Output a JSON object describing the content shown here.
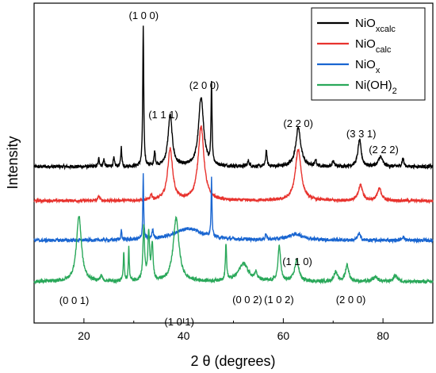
{
  "chart_data": {
    "type": "line",
    "xlabel": "2 θ (degrees)",
    "ylabel": "Intensity",
    "xlim": [
      10,
      90
    ],
    "xticks": [
      "20",
      "40",
      "60",
      "80"
    ],
    "xtick_values": [
      20,
      40,
      60,
      80
    ],
    "yticks": "none",
    "legend_position": "top-right",
    "legend": [
      {
        "base": "NiO",
        "sub": "xcalc",
        "tail": "",
        "color": "#000000"
      },
      {
        "base": "NiO",
        "sub": "calc",
        "tail": "",
        "color": "#e8332e"
      },
      {
        "base": "NiO",
        "sub": "x",
        "tail": "",
        "color": "#1a66d1"
      },
      {
        "base": "Ni(OH)",
        "sub": "2",
        "tail": "",
        "color": "#2aa85a"
      }
    ],
    "annotations": [
      {
        "text": "(1 0 0)",
        "x": 32.0
      },
      {
        "text": "(2 0 0)",
        "x": 43.5
      },
      {
        "text": "(1 1 1)",
        "x": 37.2
      },
      {
        "text": "(2 2 0)",
        "x": 63.0
      },
      {
        "text": "(3 3 1)",
        "x": 75.0
      },
      {
        "text": "(2 2 2)",
        "x": 79.5
      },
      {
        "text": "(1 1 0)",
        "x": 62.8
      },
      {
        "text": "(0 0 1)",
        "x": 19.0
      },
      {
        "text": "(1 0 1)",
        "x": 38.5
      },
      {
        "text": "(0 0 2)",
        "x": 51.5
      },
      {
        "text": "(1 0 2)",
        "x": 58.5
      },
      {
        "text": "(2 0 0)",
        "x": 71.0
      }
    ],
    "series": [
      {
        "name": "NiOxcalc",
        "color": "#000000",
        "baseline": 0.0,
        "noise": 0.012,
        "peaks": [
          [
            23.0,
            0.06,
            0.15
          ],
          [
            24.0,
            0.05,
            0.15
          ],
          [
            26.0,
            0.06,
            0.15
          ],
          [
            27.5,
            0.14,
            0.12
          ],
          [
            31.9,
            1.0,
            0.12
          ],
          [
            34.2,
            0.1,
            0.15
          ],
          [
            37.3,
            0.37,
            0.5
          ],
          [
            43.5,
            0.5,
            0.6
          ],
          [
            45.6,
            0.58,
            0.12
          ],
          [
            53.0,
            0.04,
            0.2
          ],
          [
            56.6,
            0.12,
            0.15
          ],
          [
            63.0,
            0.28,
            0.6
          ],
          [
            66.5,
            0.05,
            0.15
          ],
          [
            70.0,
            0.04,
            0.2
          ],
          [
            75.3,
            0.19,
            0.4
          ],
          [
            79.5,
            0.07,
            0.5
          ],
          [
            84.0,
            0.06,
            0.2
          ]
        ]
      },
      {
        "name": "NiOcalc",
        "color": "#e8332e",
        "baseline": 0.0,
        "noise": 0.012,
        "peaks": [
          [
            23.0,
            0.04,
            0.2
          ],
          [
            33.5,
            0.05,
            0.2
          ],
          [
            37.3,
            0.43,
            0.6
          ],
          [
            43.5,
            0.62,
            0.7
          ],
          [
            63.0,
            0.43,
            0.7
          ],
          [
            75.5,
            0.13,
            0.5
          ],
          [
            79.3,
            0.1,
            0.5
          ]
        ]
      },
      {
        "name": "NiOx",
        "color": "#1a66d1",
        "baseline": 0.0,
        "noise": 0.014,
        "peaks": [
          [
            27.5,
            0.08,
            0.12
          ],
          [
            31.9,
            0.55,
            0.1
          ],
          [
            33.8,
            0.08,
            0.15
          ],
          [
            41.0,
            0.1,
            3.5
          ],
          [
            45.6,
            0.5,
            0.1
          ],
          [
            56.5,
            0.05,
            0.15
          ],
          [
            62.5,
            0.05,
            2.0
          ],
          [
            75.2,
            0.06,
            0.3
          ],
          [
            84.0,
            0.03,
            0.3
          ]
        ]
      },
      {
        "name": "Ni(OH)2",
        "color": "#2aa85a",
        "baseline": 0.0,
        "noise": 0.014,
        "peaks": [
          [
            19.0,
            0.55,
            0.6
          ],
          [
            23.5,
            0.05,
            0.2
          ],
          [
            28.0,
            0.25,
            0.12
          ],
          [
            29.0,
            0.28,
            0.12
          ],
          [
            32.0,
            0.45,
            0.2
          ],
          [
            33.0,
            0.4,
            0.2
          ],
          [
            33.7,
            0.3,
            0.2
          ],
          [
            38.5,
            0.53,
            0.7
          ],
          [
            48.5,
            0.3,
            0.15
          ],
          [
            52.0,
            0.15,
            1.2
          ],
          [
            54.5,
            0.06,
            0.3
          ],
          [
            59.2,
            0.3,
            0.3
          ],
          [
            62.7,
            0.18,
            0.5
          ],
          [
            70.5,
            0.08,
            0.4
          ],
          [
            72.8,
            0.14,
            0.4
          ],
          [
            78.5,
            0.04,
            0.5
          ],
          [
            82.5,
            0.05,
            0.5
          ]
        ]
      }
    ]
  }
}
